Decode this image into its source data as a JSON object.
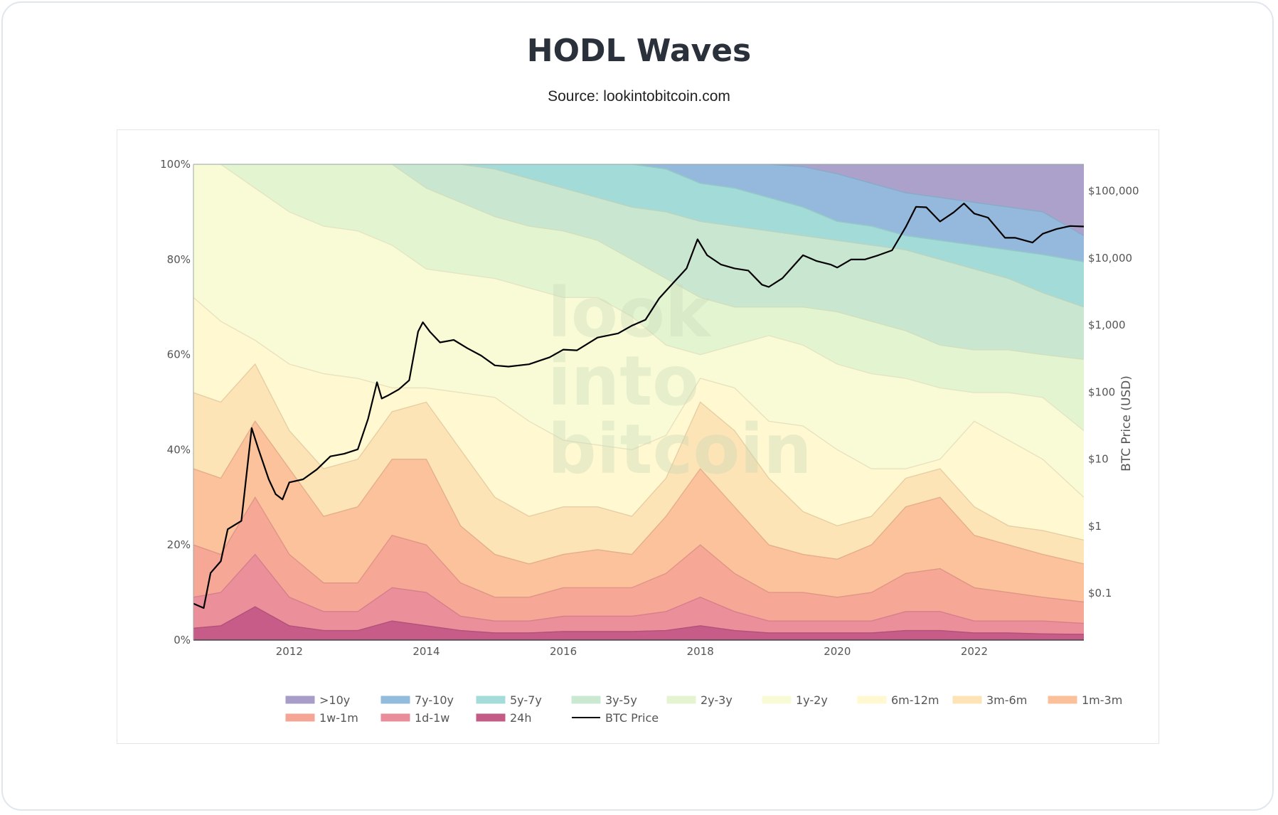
{
  "header": {
    "title": "HODL Waves",
    "subtitle": "Source: lookintobitcoin.com"
  },
  "watermark": [
    "look",
    "into",
    "bitcoin"
  ],
  "chart_data": {
    "type": "area",
    "title": "HODL Waves",
    "x_ticks": [
      "2012",
      "2014",
      "2016",
      "2018",
      "2020",
      "2022"
    ],
    "x_range": [
      2010.6,
      2023.6
    ],
    "y_left_ticks": [
      "0%",
      "20%",
      "40%",
      "60%",
      "80%",
      "100%"
    ],
    "y_left_range": [
      0,
      100
    ],
    "y_right_label": "BTC Price (USD)",
    "y_right_ticks": [
      "$0.1",
      "$1",
      "$10",
      "$100",
      "$1,000",
      "$10,000",
      "$100,000"
    ],
    "y_right_scale": "log",
    "y_right_range": [
      0.02,
      250000
    ],
    "grid": true,
    "legend_placement": "bottom",
    "x": [
      2010.6,
      2011.0,
      2011.5,
      2012.0,
      2012.5,
      2013.0,
      2013.5,
      2014.0,
      2014.5,
      2015.0,
      2015.5,
      2016.0,
      2016.5,
      2017.0,
      2017.5,
      2018.0,
      2018.5,
      2019.0,
      2019.5,
      2020.0,
      2020.5,
      2021.0,
      2021.5,
      2022.0,
      2022.5,
      2023.0,
      2023.6
    ],
    "series": [
      {
        "name": ">10y",
        "color": "#a89cc8",
        "upper": [
          100,
          100,
          100,
          100,
          100,
          100,
          100,
          100,
          100,
          100,
          100,
          100,
          100,
          100,
          100,
          100,
          100,
          100,
          100,
          100,
          100,
          100,
          100,
          100,
          100,
          100,
          100
        ]
      },
      {
        "name": "7y-10y",
        "color": "#93bbdc",
        "upper": [
          100,
          100,
          100,
          100,
          100,
          100,
          100,
          100,
          100,
          100,
          100,
          100,
          100,
          100,
          100,
          100,
          100,
          100,
          99.5,
          98,
          96,
          94,
          93,
          92,
          91,
          90,
          85
        ]
      },
      {
        "name": "5y-7y",
        "color": "#a3dcd8",
        "upper": [
          100,
          100,
          100,
          100,
          100,
          100,
          100,
          100,
          100,
          100,
          100,
          100,
          100,
          100,
          99,
          96,
          95,
          93,
          91,
          88,
          87,
          85,
          84,
          83,
          82,
          81,
          79.5
        ]
      },
      {
        "name": "3y-5y",
        "color": "#cbe8d0",
        "upper": [
          100,
          100,
          100,
          100,
          100,
          100,
          100,
          100,
          100,
          99,
          97,
          95,
          93,
          91,
          90,
          88,
          87,
          86,
          85,
          84,
          83,
          82,
          80,
          78,
          76,
          73,
          70
        ]
      },
      {
        "name": "2y-3y",
        "color": "#e5f4d0",
        "upper": [
          100,
          100,
          100,
          100,
          100,
          100,
          100,
          95,
          92,
          89,
          87,
          86,
          84,
          80,
          76,
          72,
          70,
          70,
          70,
          69,
          67,
          65,
          62,
          61,
          61,
          60,
          59
        ]
      },
      {
        "name": "1y-2y",
        "color": "#f9fbd6",
        "upper": [
          100,
          100,
          95,
          90,
          87,
          86,
          83,
          78,
          77,
          76,
          74,
          72,
          72,
          68,
          62,
          60,
          62,
          64,
          62,
          58,
          56,
          55,
          53,
          52,
          52,
          51,
          44
        ]
      },
      {
        "name": "6m-12m",
        "color": "#fff8d1",
        "upper": [
          72,
          67,
          63,
          58,
          56,
          55,
          53,
          53,
          52,
          51,
          46,
          42,
          41,
          40,
          43,
          55,
          53,
          46,
          45,
          40,
          36,
          36,
          38,
          46,
          42,
          38,
          30
        ]
      },
      {
        "name": "3m-6m",
        "color": "#fde3b5",
        "upper": [
          52,
          50,
          58,
          44,
          36,
          38,
          48,
          50,
          40,
          30,
          26,
          28,
          28,
          26,
          34,
          50,
          44,
          34,
          27,
          24,
          26,
          34,
          36,
          28,
          24,
          23,
          21
        ]
      },
      {
        "name": "1m-3m",
        "color": "#fbc09a",
        "upper": [
          36,
          34,
          46,
          36,
          26,
          28,
          38,
          38,
          24,
          18,
          16,
          18,
          19,
          18,
          26,
          36,
          28,
          20,
          18,
          17,
          20,
          28,
          30,
          22,
          20,
          18,
          16
        ]
      },
      {
        "name": "1w-1m",
        "color": "#f5a595",
        "upper": [
          20,
          18,
          30,
          18,
          12,
          12,
          22,
          20,
          12,
          9,
          9,
          11,
          11,
          11,
          14,
          20,
          14,
          10,
          10,
          9,
          10,
          14,
          15,
          11,
          10,
          9,
          8
        ]
      },
      {
        "name": "1d-1w",
        "color": "#ea8d9a",
        "upper": [
          9,
          10,
          18,
          9,
          6,
          6,
          11,
          10,
          5,
          4,
          4,
          5,
          5,
          5,
          6,
          9,
          6,
          4,
          4,
          4,
          4,
          6,
          6,
          4,
          4,
          4,
          3.5
        ]
      },
      {
        "name": "24h",
        "color": "#c45a86",
        "upper": [
          2.5,
          3,
          7,
          3,
          2,
          2,
          4,
          3,
          2,
          1.5,
          1.5,
          1.8,
          1.8,
          1.8,
          2,
          3,
          2,
          1.5,
          1.5,
          1.5,
          1.5,
          2,
          2,
          1.5,
          1.5,
          1.3,
          1.2
        ]
      }
    ],
    "btc_price": {
      "name": "BTC Price",
      "color": "#000000",
      "x": [
        2010.6,
        2010.75,
        2010.85,
        2011.0,
        2011.1,
        2011.3,
        2011.45,
        2011.55,
        2011.7,
        2011.8,
        2011.9,
        2012.0,
        2012.2,
        2012.4,
        2012.6,
        2012.8,
        2013.0,
        2013.15,
        2013.28,
        2013.35,
        2013.45,
        2013.6,
        2013.75,
        2013.88,
        2013.95,
        2014.05,
        2014.2,
        2014.4,
        2014.6,
        2014.8,
        2015.0,
        2015.2,
        2015.5,
        2015.8,
        2016.0,
        2016.2,
        2016.5,
        2016.8,
        2017.0,
        2017.2,
        2017.4,
        2017.6,
        2017.8,
        2017.96,
        2018.1,
        2018.3,
        2018.5,
        2018.7,
        2018.9,
        2019.0,
        2019.2,
        2019.5,
        2019.7,
        2019.9,
        2020.0,
        2020.2,
        2020.4,
        2020.6,
        2020.8,
        2021.0,
        2021.15,
        2021.3,
        2021.5,
        2021.7,
        2021.85,
        2022.0,
        2022.2,
        2022.45,
        2022.6,
        2022.85,
        2023.0,
        2023.2,
        2023.4,
        2023.6
      ],
      "y": [
        0.07,
        0.06,
        0.2,
        0.3,
        0.9,
        1.2,
        29,
        14,
        5,
        3,
        2.5,
        4.5,
        5,
        7,
        11,
        12,
        14,
        40,
        140,
        80,
        90,
        110,
        150,
        800,
        1100,
        800,
        550,
        600,
        450,
        350,
        250,
        240,
        260,
        330,
        430,
        420,
        650,
        750,
        980,
        1200,
        2500,
        4200,
        7000,
        19000,
        11000,
        8000,
        7000,
        6500,
        4000,
        3700,
        5000,
        11000,
        9000,
        8000,
        7200,
        9500,
        9500,
        11000,
        13000,
        29000,
        58000,
        57000,
        35000,
        48000,
        65000,
        46000,
        40000,
        20000,
        20000,
        17000,
        23000,
        27000,
        30000,
        29500
      ]
    }
  }
}
